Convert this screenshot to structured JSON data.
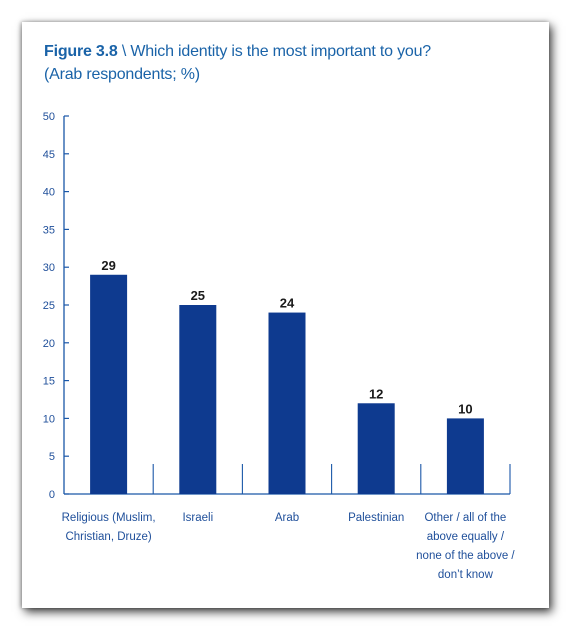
{
  "figure_label": "Figure 3.8",
  "title_rest": "\\ Which identity is the most important to you?",
  "subtitle": "(Arab respondents; %)",
  "colors": {
    "bar": "#0e3a8f",
    "axis": "#1a57a8",
    "text": "#1a63a8"
  },
  "chart_data": {
    "type": "bar",
    "title": "Which identity is the most important to you?",
    "subtitle": "(Arab respondents; %)",
    "categories": [
      "Religious (Muslim, Christian, Druze)",
      "Israeli",
      "Arab",
      "Palestinian",
      "Other / all of the above equally / none of the above / don't know"
    ],
    "category_lines": [
      [
        "Religious (Muslim,",
        "Christian, Druze)"
      ],
      [
        "Israeli"
      ],
      [
        "Arab"
      ],
      [
        "Palestinian"
      ],
      [
        "Other / all of the",
        "above equally /",
        "none of the above /",
        "don’t know"
      ]
    ],
    "values": [
      29,
      25,
      24,
      12,
      10
    ],
    "ylim": [
      0,
      50
    ],
    "yticks": [
      0,
      5,
      10,
      15,
      20,
      25,
      30,
      35,
      40,
      45,
      50
    ],
    "xlabel": "",
    "ylabel": "",
    "grid": false,
    "data_labels": true
  }
}
